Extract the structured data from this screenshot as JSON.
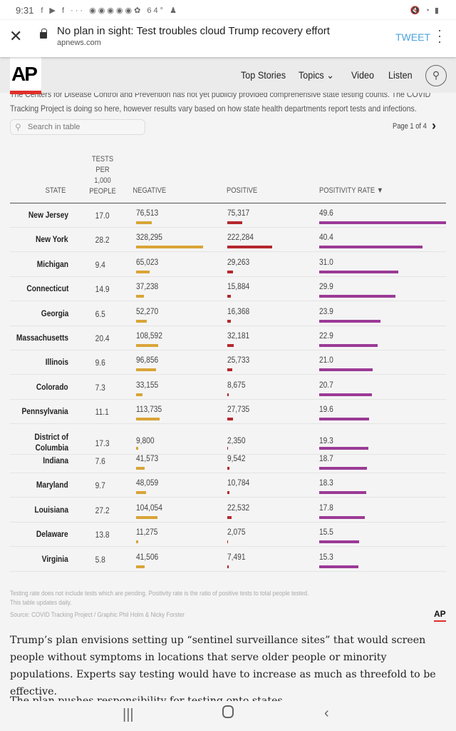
{
  "status": {
    "time": "9:31",
    "temp": "64°"
  },
  "browser": {
    "title": "No plan in sight: Test troubles cloud Trump recovery effort",
    "url": "apnews.com",
    "tweet": "TWEET"
  },
  "header": {
    "logo": "AP",
    "nav": [
      "Top Stories",
      "Topics",
      "Video",
      "Listen"
    ]
  },
  "intro": [
    "The Centers for Disease Control and Prevention has not yet publicly provided comprehensive state testing counts. The COVID",
    "Tracking Project is doing so here, however results vary based on how state health departments report tests and infections."
  ],
  "table": {
    "search_placeholder": "Search in table",
    "page": "Page 1 of 4",
    "headers": {
      "state": "STATE",
      "tests": "TESTS PER 1,000 PEOPLE",
      "negative": "NEGATIVE",
      "positive": "POSITIVE",
      "rate": "POSITIVITY RATE ▼"
    },
    "colors": {
      "negative": "#d9a437",
      "positive": "#b4282d",
      "rate": "#9b3a96"
    },
    "rows": [
      [
        "New Jersey",
        "17.0",
        "76,513",
        "75,317",
        "49.6"
      ],
      [
        "New York",
        "28.2",
        "328,295",
        "222,284",
        "40.4"
      ],
      [
        "Michigan",
        "9.4",
        "65,023",
        "29,263",
        "31.0"
      ],
      [
        "Connecticut",
        "14.9",
        "37,238",
        "15,884",
        "29.9"
      ],
      [
        "Georgia",
        "6.5",
        "52,270",
        "16,368",
        "23.9"
      ],
      [
        "Massachusetts",
        "20.4",
        "108,592",
        "32,181",
        "22.9"
      ],
      [
        "Illinois",
        "9.6",
        "96,856",
        "25,733",
        "21.0"
      ],
      [
        "Colorado",
        "7.3",
        "33,155",
        "8,675",
        "20.7"
      ],
      [
        "Pennsylvania",
        "11.1",
        "113,735",
        "27,735",
        "19.6"
      ],
      [
        "District of Columbia",
        "17.3",
        "9,800",
        "2,350",
        "19.3"
      ],
      [
        "Indiana",
        "7.6",
        "41,573",
        "9,542",
        "18.7"
      ],
      [
        "Maryland",
        "9.7",
        "48,059",
        "10,784",
        "18.3"
      ],
      [
        "Louisiana",
        "27.2",
        "104,054",
        "22,532",
        "17.8"
      ],
      [
        "Delaware",
        "13.8",
        "11,275",
        "2,075",
        "15.5"
      ],
      [
        "Virginia",
        "5.8",
        "41,506",
        "7,491",
        "15.3"
      ]
    ],
    "notes": [
      "Testing rate does not include tests which are pending. Positivity rate is the ratio of positive tests to total people tested.",
      "This table updates daily.",
      "Source: COVID Tracking Project / Graphic Phil Holm & Nicky Forster"
    ]
  },
  "article": {
    "p1": "Trump’s plan envisions setting up “sentinel surveillance sites” that would screen people without symptoms in locations that serve older people or minority populations. Experts say testing would have to increase as much as threefold to be effective.",
    "p2": "The plan pushes responsibility for testing onto states."
  }
}
